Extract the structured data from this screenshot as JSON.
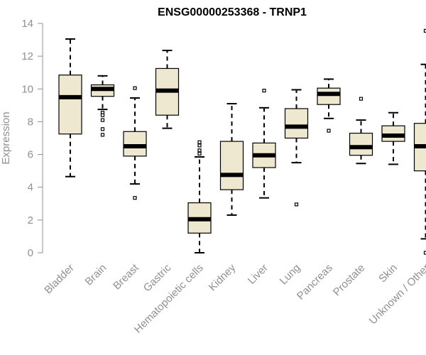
{
  "chart_data": {
    "type": "boxplot",
    "title": "ENSG00000253368 - TRNP1",
    "xlabel": "",
    "ylabel": "Expression",
    "ylim": [
      0,
      14
    ],
    "yticks": [
      0,
      2,
      4,
      6,
      8,
      10,
      12,
      14
    ],
    "grid": false,
    "legend": "none",
    "colors": {
      "box_fill": "#EFE8D0",
      "box_stroke": "#000000",
      "median": "#000000",
      "axis": "#909090",
      "text": "#909090"
    },
    "categories": [
      "Bladder",
      "Brain",
      "Breast",
      "Gastric",
      "Hematopoietic cells",
      "Kidney",
      "Liver",
      "Lung",
      "Pancreas",
      "Prostate",
      "Skin",
      "Unknown / Other"
    ],
    "boxes": [
      {
        "name": "Bladder",
        "whisker_low": 4.65,
        "q1": 7.25,
        "median": 9.5,
        "q3": 10.85,
        "whisker_high": 13.05,
        "outliers": []
      },
      {
        "name": "Brain",
        "whisker_low": 8.75,
        "q1": 9.55,
        "median": 10.0,
        "q3": 10.25,
        "whisker_high": 10.8,
        "outliers": [
          8.55,
          8.4,
          8.1,
          7.55,
          7.2
        ]
      },
      {
        "name": "Breast",
        "whisker_low": 4.2,
        "q1": 5.9,
        "median": 6.5,
        "q3": 7.4,
        "whisker_high": 9.45,
        "outliers": [
          10.05,
          3.35
        ]
      },
      {
        "name": "Gastric",
        "whisker_low": 7.6,
        "q1": 8.4,
        "median": 9.9,
        "q3": 11.25,
        "whisker_high": 12.35,
        "outliers": []
      },
      {
        "name": "Hematopoietic cells",
        "whisker_low": 0.0,
        "q1": 1.2,
        "median": 2.05,
        "q3": 3.05,
        "whisker_high": 5.85,
        "outliers": [
          6.75,
          6.55,
          6.25,
          6.05
        ]
      },
      {
        "name": "Kidney",
        "whisker_low": 2.3,
        "q1": 3.85,
        "median": 4.75,
        "q3": 6.8,
        "whisker_high": 9.1,
        "outliers": []
      },
      {
        "name": "Liver",
        "whisker_low": 3.35,
        "q1": 5.2,
        "median": 5.95,
        "q3": 6.7,
        "whisker_high": 8.85,
        "outliers": [
          9.9
        ]
      },
      {
        "name": "Lung",
        "whisker_low": 5.5,
        "q1": 7.0,
        "median": 7.7,
        "q3": 8.8,
        "whisker_high": 9.95,
        "outliers": [
          2.95
        ]
      },
      {
        "name": "Pancreas",
        "whisker_low": 8.2,
        "q1": 9.05,
        "median": 9.7,
        "q3": 10.05,
        "whisker_high": 10.6,
        "outliers": [
          7.45
        ]
      },
      {
        "name": "Prostate",
        "whisker_low": 5.45,
        "q1": 5.95,
        "median": 6.45,
        "q3": 7.3,
        "whisker_high": 8.1,
        "outliers": [
          9.4
        ]
      },
      {
        "name": "Skin",
        "whisker_low": 5.4,
        "q1": 6.8,
        "median": 7.15,
        "q3": 7.75,
        "whisker_high": 8.55,
        "outliers": []
      },
      {
        "name": "Unknown / Other",
        "whisker_low": 0.85,
        "q1": 5.0,
        "median": 6.5,
        "q3": 7.9,
        "whisker_high": 11.5,
        "outliers": [
          13.55,
          0.0
        ]
      }
    ]
  }
}
